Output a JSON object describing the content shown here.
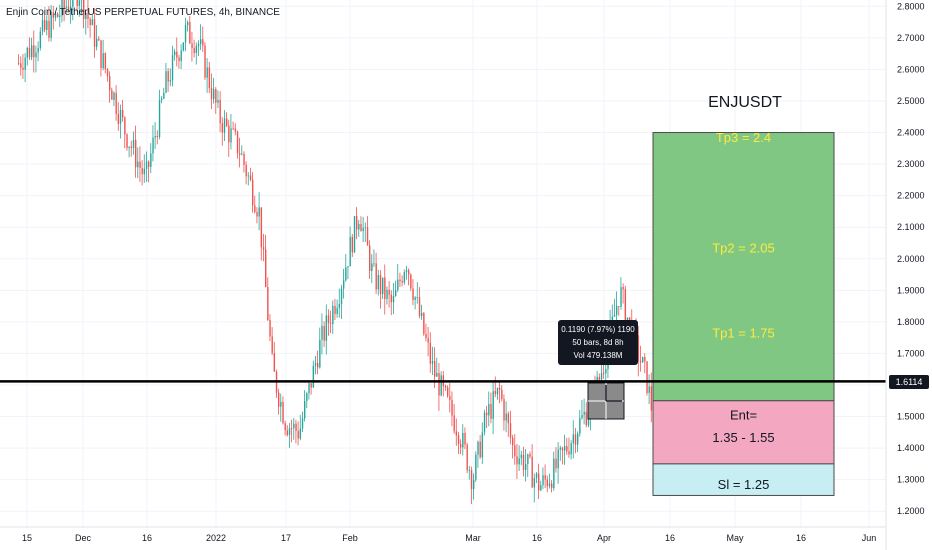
{
  "header": {
    "title": "Enjin Coin / TetherUS PERPETUAL FUTURES, 4h, BINANCE"
  },
  "annotations": {
    "symbol_label": "ENJUSDT",
    "tp3": "Tp3 = 2.4",
    "tp2": "Tp2 = 2.05",
    "tp1": "Tp1 = 1.75",
    "entry_line1": "Ent=",
    "entry_line2": "1.35 - 1.55",
    "sl": "Sl = 1.25",
    "current_price": "1.6114"
  },
  "tooltip": {
    "line1": "0.1190 (7.97%) 1190",
    "line2": "50 bars, 8d 8h",
    "line3": "Vol 479.138M"
  },
  "colors": {
    "up": "#26a69a",
    "down": "#ef5350",
    "target_zone": "#81c784",
    "entry_zone": "#f4a7c0",
    "stop_zone": "#c7eef2",
    "target_text": "#ffeb3b",
    "price_line": "#000000"
  },
  "chart_data": {
    "type": "candlestick",
    "x_tick_labels": [
      "15",
      "Dec",
      "16",
      "2022",
      "17",
      "Feb",
      "Mar",
      "16",
      "Apr",
      "16",
      "May",
      "16",
      "Jun"
    ],
    "y_ticks": [
      1.2,
      1.3,
      1.4,
      1.5,
      1.6,
      1.7,
      1.8,
      1.9,
      2.0,
      2.1,
      2.2,
      2.3,
      2.4,
      2.5,
      2.6,
      2.7,
      2.8
    ],
    "y_tick_labels": [
      "1.2000",
      "1.3000",
      "1.4000",
      "1.5000",
      "1.6000",
      "1.7000",
      "1.8000",
      "1.9000",
      "2.0000",
      "2.1000",
      "2.2000",
      "2.3000",
      "2.4000",
      "2.5000",
      "2.6000",
      "2.7000",
      "2.8000"
    ],
    "ylim": [
      1.15,
      2.82
    ],
    "current_price": 1.6114,
    "zones": [
      {
        "name": "target",
        "from": 1.55,
        "to": 2.4
      },
      {
        "name": "entry",
        "from": 1.35,
        "to": 1.55
      },
      {
        "name": "stop",
        "from": 1.25,
        "to": 1.35
      }
    ],
    "price_path": [
      [
        0,
        2.62
      ],
      [
        5,
        2.75
      ],
      [
        9,
        2.85
      ],
      [
        13,
        2.6
      ],
      [
        16,
        2.4
      ],
      [
        19,
        2.25
      ],
      [
        22,
        2.55
      ],
      [
        25,
        2.72
      ],
      [
        27,
        2.68
      ],
      [
        30,
        2.45
      ],
      [
        33,
        2.35
      ],
      [
        36,
        2.15
      ],
      [
        38,
        1.65
      ],
      [
        40,
        1.48
      ],
      [
        42,
        1.45
      ],
      [
        45,
        1.72
      ],
      [
        48,
        1.9
      ],
      [
        51,
        2.15
      ],
      [
        53,
        1.95
      ],
      [
        56,
        1.85
      ],
      [
        58,
        2.0
      ],
      [
        60,
        1.82
      ],
      [
        62,
        1.65
      ],
      [
        64,
        1.55
      ],
      [
        66,
        1.45
      ],
      [
        68,
        1.3
      ],
      [
        70,
        1.5
      ],
      [
        72,
        1.58
      ],
      [
        74,
        1.4
      ],
      [
        76,
        1.35
      ],
      [
        78,
        1.28
      ],
      [
        80,
        1.32
      ],
      [
        82,
        1.4
      ],
      [
        84,
        1.48
      ],
      [
        86,
        1.55
      ],
      [
        88,
        1.7
      ],
      [
        90,
        1.9
      ],
      [
        92,
        1.75
      ],
      [
        94,
        1.62
      ],
      [
        95,
        1.5
      ],
      [
        97,
        1.6
      ]
    ]
  }
}
